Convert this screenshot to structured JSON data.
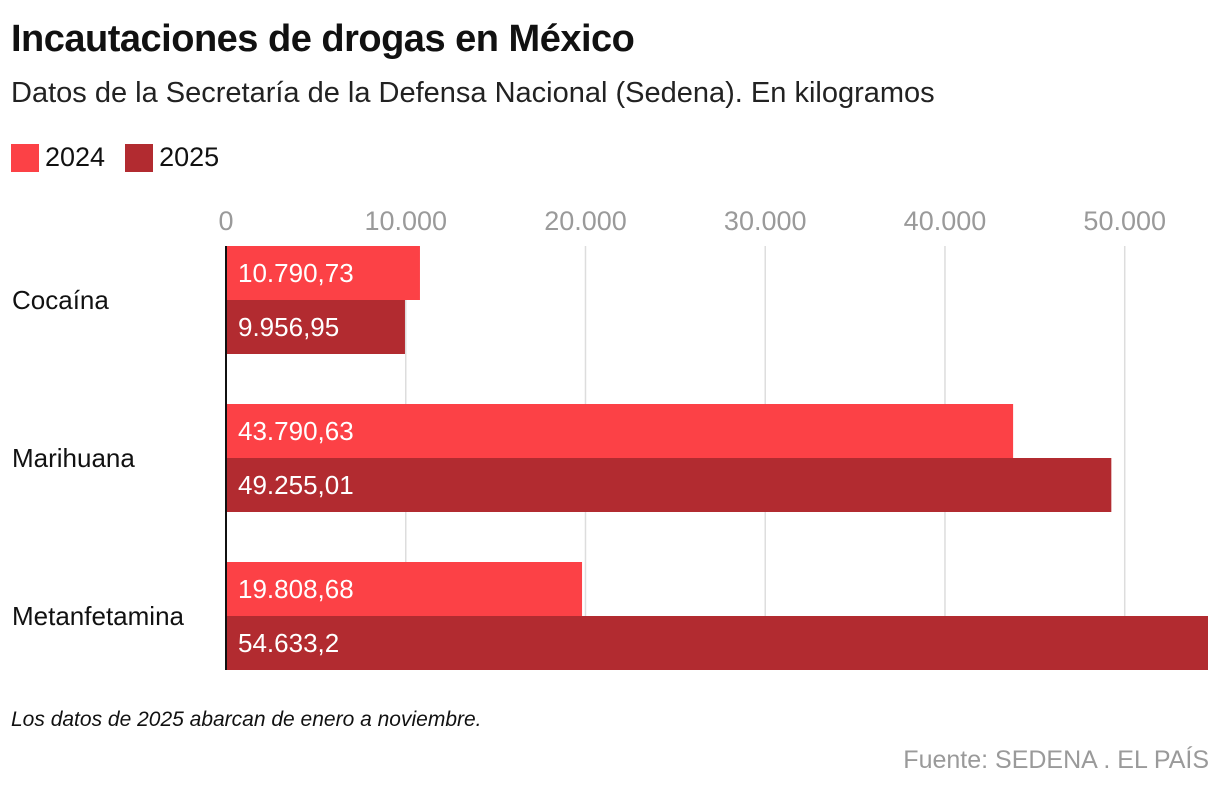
{
  "chart_data": {
    "type": "bar",
    "orientation": "horizontal",
    "title": "Incautaciones de drogas en México",
    "subtitle": "Datos de la Secretaría de la Defensa Nacional (Sedena). En kilogramos",
    "categories": [
      "Cocaína",
      "Marihuana",
      "Metanfetamina"
    ],
    "series": [
      {
        "name": "2024",
        "color": "#fc4146",
        "values": [
          10790.73,
          43790.63,
          19808.68
        ],
        "labels": [
          "10.790,73",
          "43.790,63",
          "19.808,68"
        ]
      },
      {
        "name": "2025",
        "color": "#b22b30",
        "values": [
          9956.95,
          49255.01,
          54633.2
        ],
        "labels": [
          "9.956,95",
          "49.255,01",
          "54.633,2"
        ]
      }
    ],
    "xlim": [
      0,
      54633.2
    ],
    "ticks": [
      0,
      10000,
      20000,
      30000,
      40000,
      50000
    ],
    "tick_labels": [
      "0",
      "10.000",
      "20.000",
      "30.000",
      "40.000",
      "50.000"
    ],
    "grid": true,
    "legend_position": "top-left",
    "footnote": "Los datos de 2025 abarcan de enero a noviembre.",
    "source": "Fuente: SEDENA . EL PAÍS"
  },
  "colors": {
    "series_2024": "#fc4146",
    "series_2025": "#b22b30",
    "grid": "#dddddd",
    "tick_text": "#9a9a9a"
  }
}
